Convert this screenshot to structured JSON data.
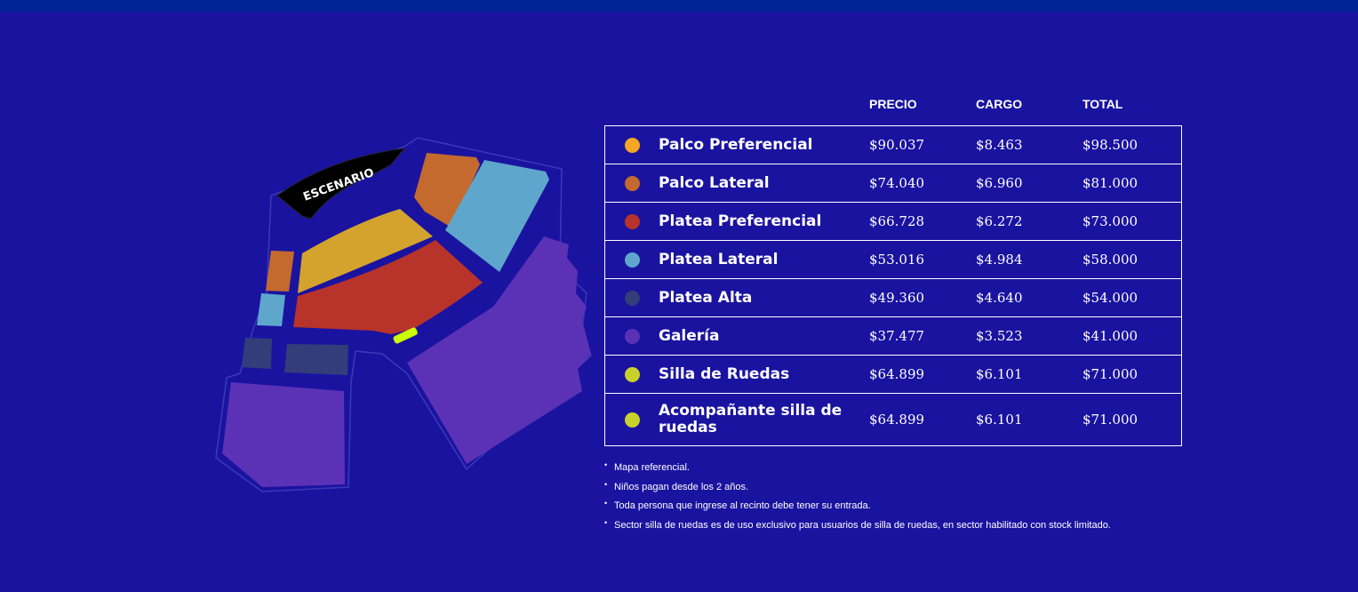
{
  "map": {
    "stage_label": "ESCENARIO"
  },
  "headers": {
    "precio": "PRECIO",
    "cargo": "CARGO",
    "total": "TOTAL"
  },
  "rows": [
    {
      "name": "Palco Preferencial",
      "color": "#f5a623",
      "precio": "$90.037",
      "cargo": "$8.463",
      "total": "$98.500"
    },
    {
      "name": "Palco Lateral",
      "color": "#c46a2e",
      "precio": "$74.040",
      "cargo": "$6.960",
      "total": "$81.000"
    },
    {
      "name": "Platea Preferencial",
      "color": "#b8332a",
      "precio": "$66.728",
      "cargo": "$6.272",
      "total": "$73.000"
    },
    {
      "name": "Platea Lateral",
      "color": "#5ea6cc",
      "precio": "$53.016",
      "cargo": "$4.984",
      "total": "$58.000"
    },
    {
      "name": "Platea Alta",
      "color": "#343d79",
      "precio": "$49.360",
      "cargo": "$4.640",
      "total": "$54.000"
    },
    {
      "name": "Galería",
      "color": "#5b32b6",
      "precio": "$37.477",
      "cargo": "$3.523",
      "total": "$41.000"
    },
    {
      "name": "Silla de Ruedas",
      "color": "#c8d12a",
      "precio": "$64.899",
      "cargo": "$6.101",
      "total": "$71.000"
    },
    {
      "name": "Acompañante silla de ruedas",
      "color": "#c8d12a",
      "precio": "$64.899",
      "cargo": "$6.101",
      "total": "$71.000"
    }
  ],
  "notes": [
    "Mapa referencial.",
    "Niños pagan desde los 2 años.",
    "Toda persona que ingrese al recinto debe tener su entrada.",
    "Sector silla de ruedas es de uso exclusivo para usuarios de silla de ruedas, en sector habilitado con stock limitado."
  ]
}
